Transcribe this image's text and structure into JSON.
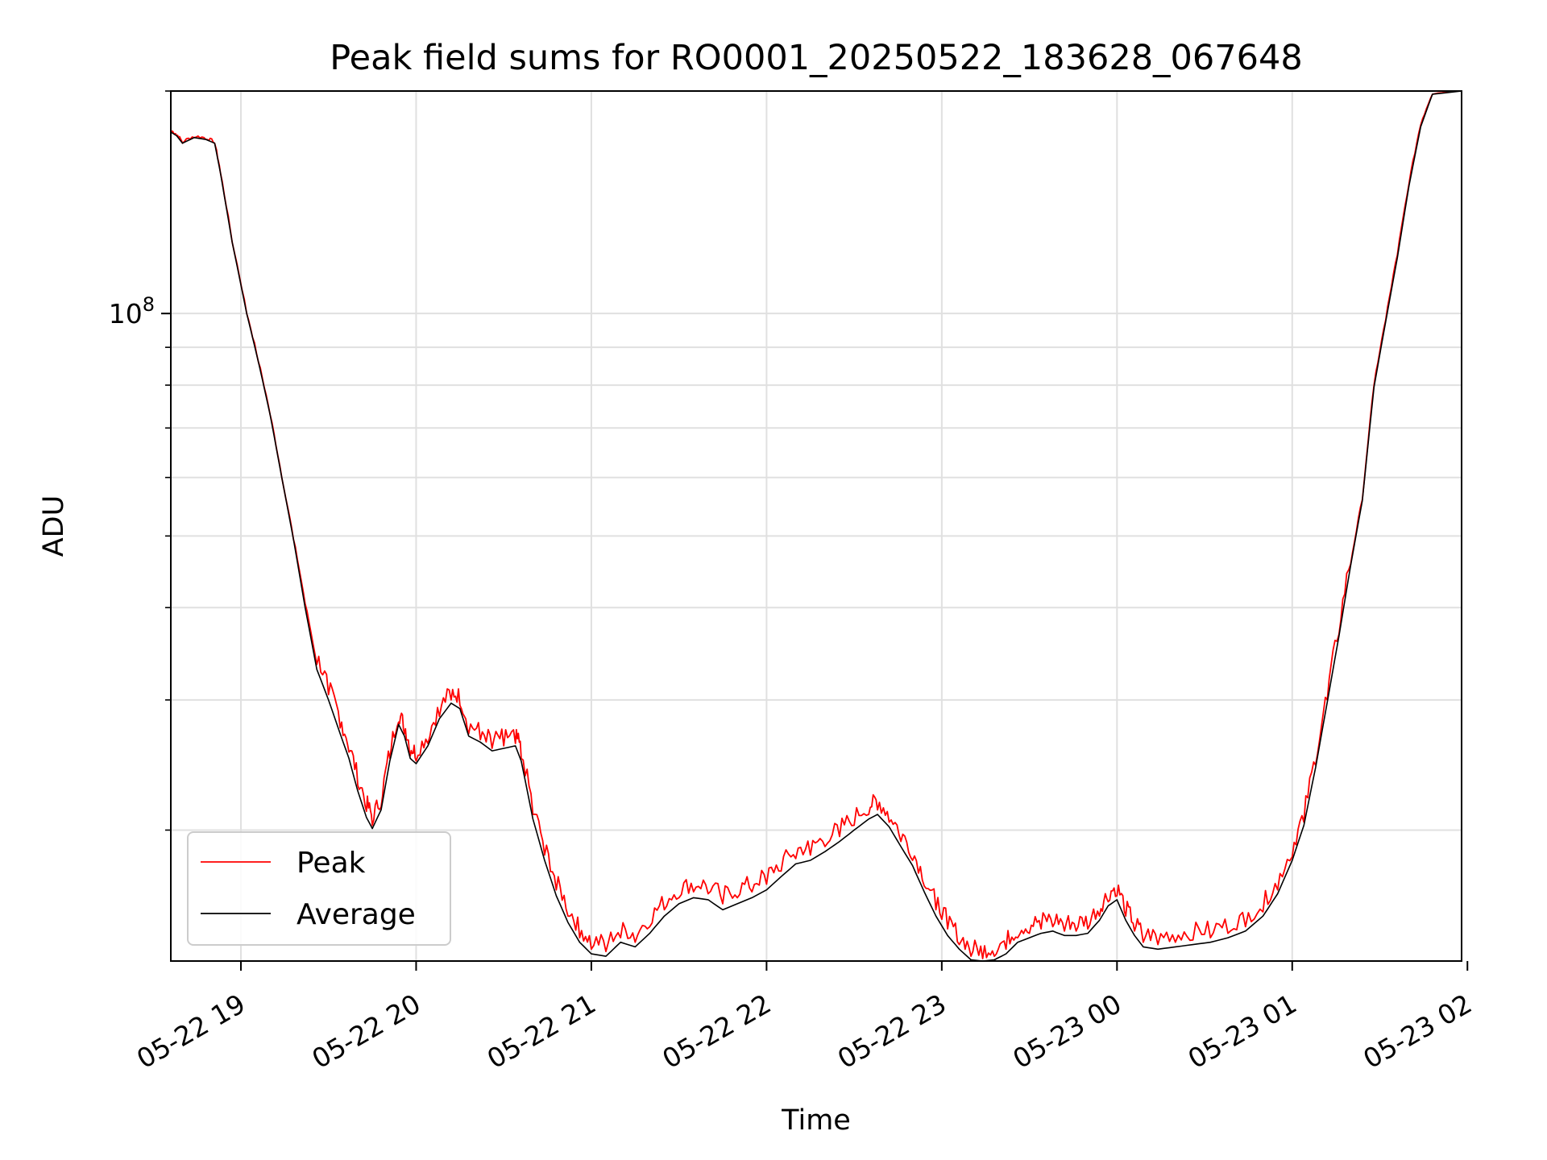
{
  "chart_data": {
    "type": "line",
    "title": "Peak field sums for RO0001_20250522_183628_067648",
    "xlabel": "Time",
    "ylabel": "ADU",
    "y_scale": "log",
    "grid": true,
    "legend_position": "lower-left",
    "xlim": [
      "2025-05-22 18:36",
      "2025-05-23 01:58"
    ],
    "ylim": [
      13300000,
      200000000
    ],
    "x_ticks": [
      {
        "time": "2025-05-22 19:00",
        "label": "05-22 19"
      },
      {
        "time": "2025-05-22 20:00",
        "label": "05-22 20"
      },
      {
        "time": "2025-05-22 21:00",
        "label": "05-22 21"
      },
      {
        "time": "2025-05-22 22:00",
        "label": "05-22 22"
      },
      {
        "time": "2025-05-22 23:00",
        "label": "05-22 23"
      },
      {
        "time": "2025-05-23 00:00",
        "label": "05-23 00"
      },
      {
        "time": "2025-05-23 01:00",
        "label": "05-23 01"
      },
      {
        "time": "2025-05-23 02:00",
        "label": "05-23 02"
      }
    ],
    "y_major_ticks": [
      {
        "value": 100000000,
        "base": "10",
        "exp": "8"
      }
    ],
    "y_minor_ticks": [
      20000000,
      30000000,
      40000000,
      50000000,
      60000000,
      70000000,
      80000000,
      90000000,
      200000000
    ],
    "series": [
      {
        "name": "Peak",
        "color": "#ff0000",
        "spiky": true,
        "points": [
          [
            "2025-05-22 18:36",
            176000000
          ],
          [
            "2025-05-22 18:38",
            174000000
          ],
          [
            "2025-05-22 18:40",
            170000000
          ],
          [
            "2025-05-22 18:44",
            173000000
          ],
          [
            "2025-05-22 18:48",
            172000000
          ],
          [
            "2025-05-22 18:51",
            170000000
          ],
          [
            "2025-05-22 18:53",
            155000000
          ],
          [
            "2025-05-22 18:57",
            125000000
          ],
          [
            "2025-05-22 19:02",
            100000000
          ],
          [
            "2025-05-22 19:06",
            86000000
          ],
          [
            "2025-05-22 19:10",
            73000000
          ],
          [
            "2025-05-22 19:14",
            60000000
          ],
          [
            "2025-05-22 19:18",
            49500000
          ],
          [
            "2025-05-22 19:22",
            40500000
          ],
          [
            "2025-05-22 19:26",
            33500000
          ],
          [
            "2025-05-22 19:30",
            30500000
          ],
          [
            "2025-05-22 19:34",
            27500000
          ],
          [
            "2025-05-22 19:37",
            25500000
          ],
          [
            "2025-05-22 19:40",
            23000000
          ],
          [
            "2025-05-22 19:43",
            21200000
          ],
          [
            "2025-05-22 19:45",
            20300000
          ],
          [
            "2025-05-22 19:48",
            21500000
          ],
          [
            "2025-05-22 19:51",
            25000000
          ],
          [
            "2025-05-22 19:54",
            28000000
          ],
          [
            "2025-05-22 19:56",
            27000000
          ],
          [
            "2025-05-22 19:58",
            25200000
          ],
          [
            "2025-05-22 20:00",
            24800000
          ],
          [
            "2025-05-22 20:04",
            26200000
          ],
          [
            "2025-05-22 20:08",
            28500000
          ],
          [
            "2025-05-22 20:12",
            30000000
          ],
          [
            "2025-05-22 20:15",
            29500000
          ],
          [
            "2025-05-22 20:18",
            27000000
          ],
          [
            "2025-05-22 20:22",
            26500000
          ],
          [
            "2025-05-22 20:26",
            25800000
          ],
          [
            "2025-05-22 20:30",
            26000000
          ],
          [
            "2025-05-22 20:34",
            26200000
          ],
          [
            "2025-05-22 20:36",
            25000000
          ],
          [
            "2025-05-22 20:40",
            21000000
          ],
          [
            "2025-05-22 20:44",
            18500000
          ],
          [
            "2025-05-22 20:48",
            16600000
          ],
          [
            "2025-05-22 20:52",
            15300000
          ],
          [
            "2025-05-22 20:56",
            14300000
          ],
          [
            "2025-05-22 21:00",
            13800000
          ],
          [
            "2025-05-22 21:05",
            13700000
          ],
          [
            "2025-05-22 21:10",
            14300000
          ],
          [
            "2025-05-22 21:15",
            14100000
          ],
          [
            "2025-05-22 21:20",
            14800000
          ],
          [
            "2025-05-22 21:25",
            15600000
          ],
          [
            "2025-05-22 21:30",
            16200000
          ],
          [
            "2025-05-22 21:35",
            16500000
          ],
          [
            "2025-05-22 21:40",
            16400000
          ],
          [
            "2025-05-22 21:45",
            15900000
          ],
          [
            "2025-05-22 21:50",
            16200000
          ],
          [
            "2025-05-22 21:55",
            16500000
          ],
          [
            "2025-05-22 22:00",
            16900000
          ],
          [
            "2025-05-22 22:05",
            17600000
          ],
          [
            "2025-05-22 22:10",
            18300000
          ],
          [
            "2025-05-22 22:15",
            18500000
          ],
          [
            "2025-05-22 22:20",
            19000000
          ],
          [
            "2025-05-22 22:25",
            19600000
          ],
          [
            "2025-05-22 22:30",
            20300000
          ],
          [
            "2025-05-22 22:35",
            21000000
          ],
          [
            "2025-05-22 22:38",
            21300000
          ],
          [
            "2025-05-22 22:42",
            20500000
          ],
          [
            "2025-05-22 22:46",
            19300000
          ],
          [
            "2025-05-22 22:50",
            18200000
          ],
          [
            "2025-05-22 22:54",
            16800000
          ],
          [
            "2025-05-22 22:58",
            15600000
          ],
          [
            "2025-05-22 23:02",
            14700000
          ],
          [
            "2025-05-22 23:06",
            14000000
          ],
          [
            "2025-05-22 23:10",
            13500000
          ],
          [
            "2025-05-22 23:14",
            13400000
          ],
          [
            "2025-05-22 23:18",
            13500000
          ],
          [
            "2025-05-22 23:22",
            13800000
          ],
          [
            "2025-05-22 23:26",
            14300000
          ],
          [
            "2025-05-22 23:30",
            14500000
          ],
          [
            "2025-05-22 23:34",
            14700000
          ],
          [
            "2025-05-22 23:38",
            14800000
          ],
          [
            "2025-05-22 23:42",
            14600000
          ],
          [
            "2025-05-22 23:46",
            14600000
          ],
          [
            "2025-05-22 23:50",
            14700000
          ],
          [
            "2025-05-22 23:54",
            15300000
          ],
          [
            "2025-05-22 23:57",
            16000000
          ],
          [
            "2025-05-23 00:00",
            16300000
          ],
          [
            "2025-05-23 00:03",
            15300000
          ],
          [
            "2025-05-23 00:06",
            14600000
          ],
          [
            "2025-05-23 00:09",
            14100000
          ],
          [
            "2025-05-23 00:14",
            14000000
          ],
          [
            "2025-05-23 00:20",
            14100000
          ],
          [
            "2025-05-23 00:26",
            14200000
          ],
          [
            "2025-05-23 00:32",
            14300000
          ],
          [
            "2025-05-23 00:38",
            14500000
          ],
          [
            "2025-05-23 00:44",
            14800000
          ],
          [
            "2025-05-23 00:50",
            15500000
          ],
          [
            "2025-05-23 00:55",
            16600000
          ],
          [
            "2025-05-23 01:00",
            18400000
          ],
          [
            "2025-05-23 01:04",
            20500000
          ],
          [
            "2025-05-23 01:08",
            24500000
          ],
          [
            "2025-05-23 01:12",
            30000000
          ],
          [
            "2025-05-23 01:16",
            36800000
          ],
          [
            "2025-05-23 01:20",
            45800000
          ],
          [
            "2025-05-23 01:24",
            56000000
          ],
          [
            "2025-05-23 01:28",
            80000000
          ],
          [
            "2025-05-23 01:32",
            98000000
          ],
          [
            "2025-05-23 01:36",
            120000000
          ],
          [
            "2025-05-23 01:40",
            150000000
          ],
          [
            "2025-05-23 01:44",
            180000000
          ],
          [
            "2025-05-23 01:48",
            198000000
          ],
          [
            "2025-05-23 01:58",
            200000000
          ]
        ]
      },
      {
        "name": "Average",
        "color": "#000000",
        "spiky": false,
        "points": [
          [
            "2025-05-22 18:36",
            176000000
          ],
          [
            "2025-05-22 18:38",
            174000000
          ],
          [
            "2025-05-22 18:40",
            170000000
          ],
          [
            "2025-05-22 18:44",
            173000000
          ],
          [
            "2025-05-22 18:48",
            172000000
          ],
          [
            "2025-05-22 18:51",
            170000000
          ],
          [
            "2025-05-22 18:53",
            155000000
          ],
          [
            "2025-05-22 18:57",
            125000000
          ],
          [
            "2025-05-22 19:02",
            100000000
          ],
          [
            "2025-05-22 19:06",
            86000000
          ],
          [
            "2025-05-22 19:10",
            73000000
          ],
          [
            "2025-05-22 19:14",
            60000000
          ],
          [
            "2025-05-22 19:18",
            49500000
          ],
          [
            "2025-05-22 19:22",
            40000000
          ],
          [
            "2025-05-22 19:26",
            33000000
          ],
          [
            "2025-05-22 19:30",
            30000000
          ],
          [
            "2025-05-22 19:34",
            27000000
          ],
          [
            "2025-05-22 19:37",
            25000000
          ],
          [
            "2025-05-22 19:40",
            22600000
          ],
          [
            "2025-05-22 19:43",
            20800000
          ],
          [
            "2025-05-22 19:45",
            20100000
          ],
          [
            "2025-05-22 19:48",
            21300000
          ],
          [
            "2025-05-22 19:51",
            24800000
          ],
          [
            "2025-05-22 19:54",
            27800000
          ],
          [
            "2025-05-22 19:56",
            26800000
          ],
          [
            "2025-05-22 19:58",
            25000000
          ],
          [
            "2025-05-22 20:00",
            24600000
          ],
          [
            "2025-05-22 20:04",
            26000000
          ],
          [
            "2025-05-22 20:08",
            28300000
          ],
          [
            "2025-05-22 20:12",
            29700000
          ],
          [
            "2025-05-22 20:15",
            29200000
          ],
          [
            "2025-05-22 20:18",
            26800000
          ],
          [
            "2025-05-22 20:22",
            26300000
          ],
          [
            "2025-05-22 20:26",
            25600000
          ],
          [
            "2025-05-22 20:30",
            25800000
          ],
          [
            "2025-05-22 20:34",
            26000000
          ],
          [
            "2025-05-22 20:36",
            24800000
          ],
          [
            "2025-05-22 20:40",
            20700000
          ],
          [
            "2025-05-22 20:44",
            18200000
          ],
          [
            "2025-05-22 20:48",
            16300000
          ],
          [
            "2025-05-22 20:52",
            15000000
          ],
          [
            "2025-05-22 20:56",
            14100000
          ],
          [
            "2025-05-22 21:00",
            13600000
          ],
          [
            "2025-05-22 21:05",
            13500000
          ],
          [
            "2025-05-22 21:10",
            14100000
          ],
          [
            "2025-05-22 21:15",
            13900000
          ],
          [
            "2025-05-22 21:20",
            14500000
          ],
          [
            "2025-05-22 21:25",
            15300000
          ],
          [
            "2025-05-22 21:30",
            15900000
          ],
          [
            "2025-05-22 21:35",
            16200000
          ],
          [
            "2025-05-22 21:40",
            16100000
          ],
          [
            "2025-05-22 21:45",
            15600000
          ],
          [
            "2025-05-22 21:50",
            15900000
          ],
          [
            "2025-05-22 21:55",
            16200000
          ],
          [
            "2025-05-22 22:00",
            16600000
          ],
          [
            "2025-05-22 22:05",
            17300000
          ],
          [
            "2025-05-22 22:10",
            18000000
          ],
          [
            "2025-05-22 22:15",
            18200000
          ],
          [
            "2025-05-22 22:20",
            18700000
          ],
          [
            "2025-05-22 22:25",
            19300000
          ],
          [
            "2025-05-22 22:30",
            20000000
          ],
          [
            "2025-05-22 22:35",
            20700000
          ],
          [
            "2025-05-22 22:38",
            21000000
          ],
          [
            "2025-05-22 22:42",
            20200000
          ],
          [
            "2025-05-22 22:46",
            19000000
          ],
          [
            "2025-05-22 22:50",
            17900000
          ],
          [
            "2025-05-22 22:54",
            16500000
          ],
          [
            "2025-05-22 22:58",
            15300000
          ],
          [
            "2025-05-22 23:02",
            14400000
          ],
          [
            "2025-05-22 23:06",
            13800000
          ],
          [
            "2025-05-22 23:10",
            13350000
          ],
          [
            "2025-05-22 23:14",
            13300000
          ],
          [
            "2025-05-22 23:18",
            13350000
          ],
          [
            "2025-05-22 23:22",
            13600000
          ],
          [
            "2025-05-22 23:26",
            14100000
          ],
          [
            "2025-05-22 23:30",
            14300000
          ],
          [
            "2025-05-22 23:34",
            14500000
          ],
          [
            "2025-05-22 23:38",
            14600000
          ],
          [
            "2025-05-22 23:42",
            14400000
          ],
          [
            "2025-05-22 23:46",
            14400000
          ],
          [
            "2025-05-22 23:50",
            14500000
          ],
          [
            "2025-05-22 23:54",
            15100000
          ],
          [
            "2025-05-22 23:57",
            15800000
          ],
          [
            "2025-05-23 00:00",
            16100000
          ],
          [
            "2025-05-23 00:03",
            15100000
          ],
          [
            "2025-05-23 00:06",
            14400000
          ],
          [
            "2025-05-23 00:09",
            13900000
          ],
          [
            "2025-05-23 00:14",
            13800000
          ],
          [
            "2025-05-23 00:20",
            13900000
          ],
          [
            "2025-05-23 00:26",
            14000000
          ],
          [
            "2025-05-23 00:32",
            14100000
          ],
          [
            "2025-05-23 00:38",
            14300000
          ],
          [
            "2025-05-23 00:44",
            14600000
          ],
          [
            "2025-05-23 00:50",
            15300000
          ],
          [
            "2025-05-23 00:55",
            16400000
          ],
          [
            "2025-05-23 01:00",
            18200000
          ],
          [
            "2025-05-23 01:04",
            20300000
          ],
          [
            "2025-05-23 01:08",
            24300000
          ],
          [
            "2025-05-23 01:12",
            29800000
          ],
          [
            "2025-05-23 01:16",
            36600000
          ],
          [
            "2025-05-23 01:20",
            45600000
          ],
          [
            "2025-05-23 01:24",
            55800000
          ],
          [
            "2025-05-23 01:28",
            79500000
          ],
          [
            "2025-05-23 01:32",
            97500000
          ],
          [
            "2025-05-23 01:36",
            119000000
          ],
          [
            "2025-05-23 01:40",
            149000000
          ],
          [
            "2025-05-23 01:44",
            179000000
          ],
          [
            "2025-05-23 01:48",
            198000000
          ],
          [
            "2025-05-23 01:58",
            200000000
          ]
        ]
      }
    ]
  }
}
